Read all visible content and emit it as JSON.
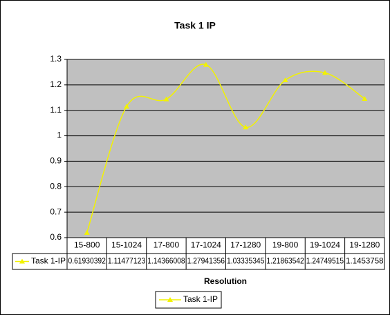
{
  "chart_data": {
    "type": "line",
    "title": "Task 1 IP",
    "x_label": "Resolution",
    "categories": [
      "15-800",
      "15-1024",
      "17-800",
      "17-1024",
      "17-1280",
      "19-800",
      "19-1024",
      "19-1280"
    ],
    "series": [
      {
        "name": "Task 1-IP",
        "color": "#f2f200",
        "values": [
          0.61930392,
          1.11477123,
          1.14366008,
          1.27941356,
          1.03335345,
          1.21863542,
          1.24749515,
          1.1453758
        ]
      }
    ],
    "ylim": [
      0.6,
      1.3
    ],
    "yticks": [
      0.6,
      0.7,
      0.8,
      0.9,
      1,
      1.1,
      1.2,
      1.3
    ],
    "grid": true,
    "smooth": true,
    "legend": "bottom",
    "data_table": true
  }
}
